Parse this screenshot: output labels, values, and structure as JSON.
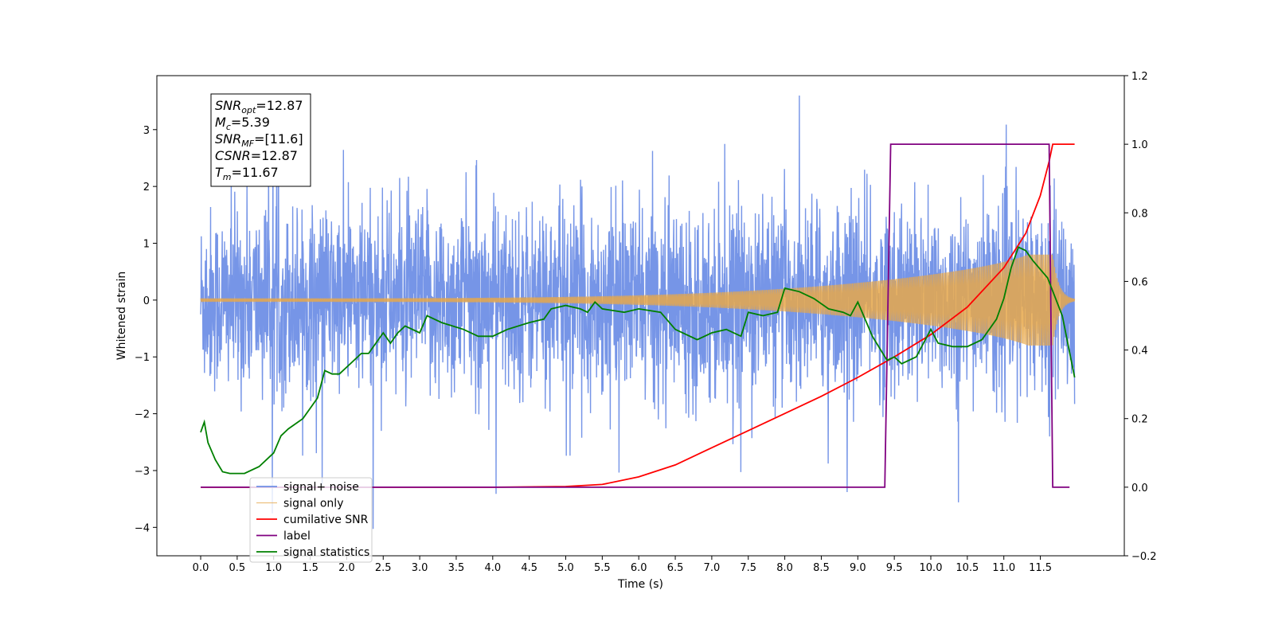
{
  "chart_data": {
    "type": "line",
    "xlabel": "Time (s)",
    "ylabel_left": "Whitened strain",
    "xlim": [
      -0.6,
      12.65
    ],
    "ylim_left": [
      -4.5,
      3.95
    ],
    "ylim_right": [
      -0.2,
      1.2
    ],
    "xticks": [
      0.0,
      0.5,
      1.0,
      1.5,
      2.0,
      2.5,
      3.0,
      3.5,
      4.0,
      4.5,
      5.0,
      5.5,
      6.0,
      6.5,
      7.0,
      7.5,
      8.0,
      8.5,
      9.0,
      9.5,
      10.0,
      10.5,
      11.0,
      11.5
    ],
    "yticks_left": [
      -4,
      -3,
      -2,
      -1,
      0,
      1,
      2,
      3
    ],
    "yticks_right": [
      -0.2,
      0.0,
      0.2,
      0.4,
      0.6,
      0.8,
      1.0,
      1.2
    ],
    "grid": false,
    "legend_position": "lower-left",
    "colors": {
      "noise": "#6f8fe6",
      "signal": "#e8a84a",
      "csnr": "#ff0000",
      "label": "#800080",
      "stats": "#008000"
    },
    "annotation": [
      {
        "base": "SNR",
        "sub": "opt",
        "value": "=12.87"
      },
      {
        "base": "M",
        "sub": "c",
        "value": "=5.39"
      },
      {
        "base": "SNR",
        "sub": "MF",
        "value": "=[11.6]"
      },
      {
        "base": "CSNR",
        "sub": "",
        "value": "=12.87"
      },
      {
        "base": "T",
        "sub": "m",
        "value": "=11.67"
      }
    ],
    "series": [
      {
        "name": "signal+ noise",
        "axis": "left",
        "kind": "noise",
        "x_range": [
          0.0,
          11.97
        ],
        "std": 0.95,
        "min": -4.1,
        "max": 3.6
      },
      {
        "name": "signal only",
        "axis": "left",
        "kind": "chirp",
        "x_range": [
          0.0,
          11.97
        ],
        "peak_amplitude": 0.8,
        "merger_time": 11.67
      },
      {
        "name": "cumilative SNR",
        "axis": "right",
        "x": [
          0.0,
          4.0,
          5.0,
          5.5,
          6.0,
          6.5,
          7.0,
          7.5,
          8.0,
          8.5,
          9.0,
          9.5,
          10.0,
          10.5,
          11.0,
          11.3,
          11.5,
          11.62,
          11.67,
          11.97
        ],
        "y": [
          0.0,
          0.0,
          0.002,
          0.008,
          0.03,
          0.065,
          0.115,
          0.165,
          0.215,
          0.265,
          0.32,
          0.38,
          0.445,
          0.525,
          0.64,
          0.74,
          0.85,
          0.95,
          1.0,
          1.0
        ]
      },
      {
        "name": "label",
        "axis": "right",
        "x": [
          0.0,
          9.37,
          9.45,
          11.62,
          11.67,
          11.9
        ],
        "y": [
          0.0,
          0.0,
          1.0,
          1.0,
          0.0,
          0.0
        ]
      },
      {
        "name": "signal statistics",
        "axis": "right",
        "x": [
          0.0,
          0.05,
          0.1,
          0.2,
          0.3,
          0.4,
          0.5,
          0.6,
          0.8,
          1.0,
          1.1,
          1.2,
          1.4,
          1.6,
          1.7,
          1.8,
          1.9,
          2.1,
          2.2,
          2.3,
          2.5,
          2.6,
          2.7,
          2.8,
          3.0,
          3.1,
          3.2,
          3.3,
          3.6,
          3.8,
          4.0,
          4.2,
          4.5,
          4.7,
          4.8,
          5.0,
          5.2,
          5.3,
          5.4,
          5.5,
          5.8,
          6.0,
          6.3,
          6.5,
          6.8,
          7.0,
          7.2,
          7.4,
          7.5,
          7.7,
          7.9,
          8.0,
          8.2,
          8.4,
          8.6,
          8.8,
          8.9,
          9.0,
          9.2,
          9.4,
          9.5,
          9.6,
          9.7,
          9.8,
          9.9,
          10.0,
          10.1,
          10.3,
          10.5,
          10.7,
          10.9,
          11.0,
          11.1,
          11.2,
          11.3,
          11.4,
          11.6,
          11.8,
          11.97
        ],
        "y": [
          0.16,
          0.19,
          0.13,
          0.08,
          0.045,
          0.04,
          0.04,
          0.04,
          0.06,
          0.1,
          0.15,
          0.17,
          0.2,
          0.26,
          0.34,
          0.33,
          0.33,
          0.37,
          0.39,
          0.39,
          0.45,
          0.42,
          0.45,
          0.47,
          0.45,
          0.5,
          0.49,
          0.48,
          0.46,
          0.44,
          0.44,
          0.46,
          0.48,
          0.49,
          0.52,
          0.53,
          0.52,
          0.51,
          0.54,
          0.52,
          0.51,
          0.52,
          0.51,
          0.46,
          0.43,
          0.45,
          0.46,
          0.44,
          0.51,
          0.5,
          0.51,
          0.58,
          0.57,
          0.55,
          0.52,
          0.51,
          0.5,
          0.54,
          0.44,
          0.37,
          0.38,
          0.36,
          0.37,
          0.38,
          0.42,
          0.46,
          0.42,
          0.41,
          0.41,
          0.43,
          0.49,
          0.55,
          0.64,
          0.7,
          0.69,
          0.66,
          0.61,
          0.5,
          0.32
        ]
      }
    ],
    "legend": [
      "signal+ noise",
      "signal only",
      "cumilative SNR",
      "label",
      "signal statistics"
    ]
  }
}
